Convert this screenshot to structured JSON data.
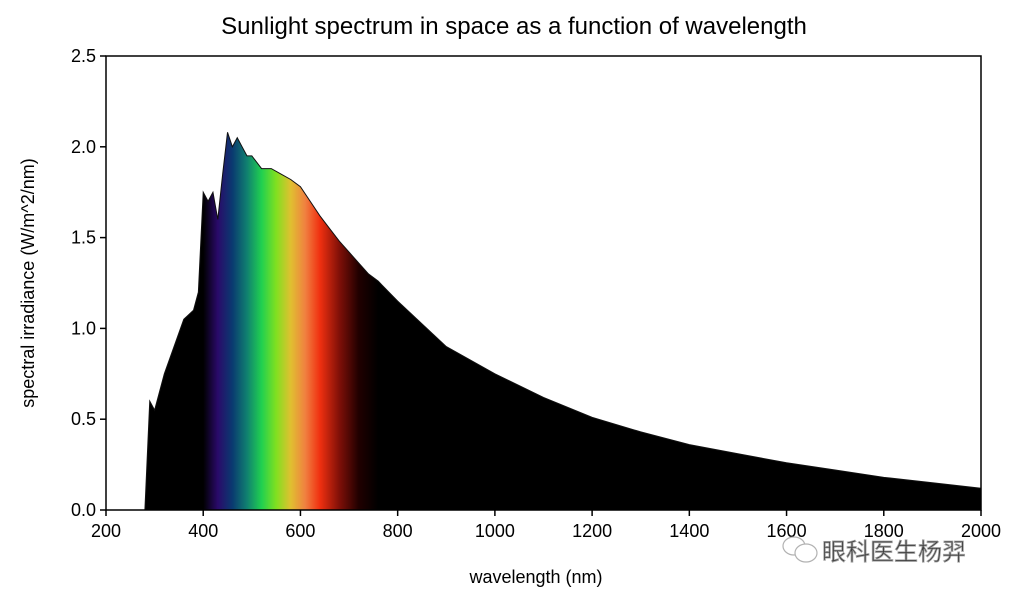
{
  "chart_data": {
    "type": "area",
    "title": "Sunlight spectrum in space as a function of wavelength",
    "xlabel": "wavelength (nm)",
    "ylabel": "spectral irradiance (W/m^2/nm)",
    "xlim": [
      200,
      2000
    ],
    "ylim": [
      0,
      2.5
    ],
    "xticks": [
      200,
      400,
      600,
      800,
      1000,
      1200,
      1400,
      1600,
      1800,
      2000
    ],
    "yticks": [
      "0.0",
      "0.5",
      "1.0",
      "1.5",
      "2.0",
      "2.5"
    ],
    "grid": false,
    "legend": "none",
    "fill_color": "#000000",
    "visible_band_nm": [
      400,
      760
    ],
    "visible_band_colors": [
      {
        "nm": 400,
        "color": "#000000"
      },
      {
        "nm": 430,
        "color": "#2a0a6a"
      },
      {
        "nm": 460,
        "color": "#0a3a70"
      },
      {
        "nm": 490,
        "color": "#108070"
      },
      {
        "nm": 520,
        "color": "#20d050"
      },
      {
        "nm": 550,
        "color": "#80e020"
      },
      {
        "nm": 580,
        "color": "#e0c030"
      },
      {
        "nm": 610,
        "color": "#f08040"
      },
      {
        "nm": 640,
        "color": "#f03010"
      },
      {
        "nm": 680,
        "color": "#801008"
      },
      {
        "nm": 720,
        "color": "#200000"
      },
      {
        "nm": 760,
        "color": "#000000"
      }
    ],
    "x": [
      280,
      290,
      300,
      320,
      340,
      360,
      380,
      390,
      400,
      410,
      420,
      430,
      440,
      450,
      460,
      470,
      480,
      490,
      500,
      520,
      540,
      560,
      580,
      600,
      620,
      640,
      660,
      680,
      700,
      720,
      740,
      760,
      800,
      900,
      1000,
      1100,
      1200,
      1300,
      1400,
      1500,
      1600,
      1700,
      1800,
      1900,
      2000
    ],
    "y": [
      0.0,
      0.6,
      0.55,
      0.75,
      0.9,
      1.05,
      1.1,
      1.2,
      1.75,
      1.7,
      1.75,
      1.6,
      1.85,
      2.08,
      2.0,
      2.05,
      2.0,
      1.95,
      1.95,
      1.88,
      1.88,
      1.85,
      1.82,
      1.78,
      1.7,
      1.62,
      1.55,
      1.48,
      1.42,
      1.36,
      1.3,
      1.26,
      1.15,
      0.9,
      0.75,
      0.62,
      0.51,
      0.43,
      0.36,
      0.31,
      0.26,
      0.22,
      0.18,
      0.15,
      0.12
    ]
  },
  "watermark": {
    "icon": "wechat-icon",
    "text": "眼科医生杨羿"
  }
}
